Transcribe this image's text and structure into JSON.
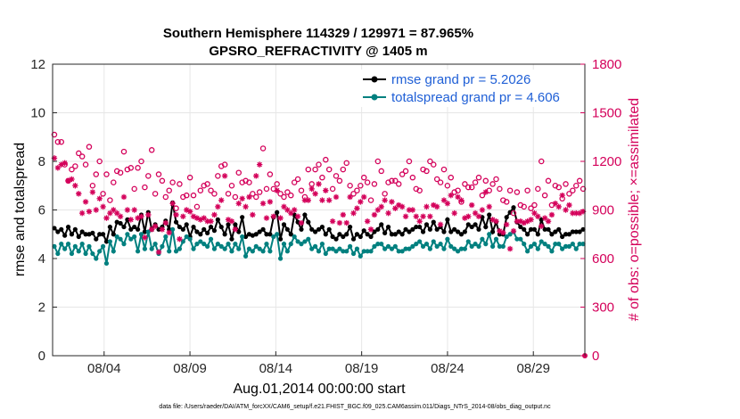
{
  "chart_data": {
    "type": "line",
    "title": "Southern Hemisphere 114329 / 129971 = 87.965%",
    "subtitle": "GPSRO_REFRACTIVITY @ 1405 m",
    "xlabel": "Aug.01,2014 00:00:00 start",
    "ylabel_left": "rmse and totalspread",
    "ylabel_right": "# of obs: o=possible; ×=assimilated",
    "x_range": [
      1,
      32
    ],
    "ylim_left": [
      0,
      12
    ],
    "ylim_right": [
      0,
      1800
    ],
    "x_tick_labels": [
      "08/04",
      "08/09",
      "08/14",
      "08/19",
      "08/24",
      "08/29"
    ],
    "x_tick_days": [
      4,
      9,
      14,
      19,
      24,
      29
    ],
    "y_ticks_left": [
      "0",
      "2",
      "4",
      "6",
      "8",
      "10",
      "12"
    ],
    "y_ticks_right": [
      "0",
      "300",
      "600",
      "900",
      "1200",
      "1500",
      "1800"
    ],
    "legend_position": "top-right",
    "series": [
      {
        "name": "rmse grand pr = 5.2026",
        "axis": "left",
        "color": "#000000",
        "marker": "filled-circle",
        "y": [
          5.25,
          5.1,
          5.2,
          4.95,
          5.3,
          5.0,
          5.2,
          4.9,
          5.1,
          5.0,
          5.0,
          5.05,
          4.8,
          5.0,
          5.0,
          4.7,
          5.3,
          5.0,
          5.5,
          5.45,
          5.3,
          5.6,
          5.2,
          5.3,
          5.2,
          5.8,
          5.1,
          5.9,
          5.2,
          5.4,
          5.2,
          5.3,
          5.55,
          5.2,
          6.3,
          5.5,
          5.3,
          5.2,
          5.4,
          4.9,
          5.3,
          5.1,
          5.0,
          5.2,
          5.05,
          5.3,
          5.15,
          5.6,
          5.3,
          5.0,
          5.4,
          4.8,
          5.4,
          5.1,
          5.7,
          4.9,
          5.0,
          4.95,
          5.0,
          5.1,
          5.2,
          5.0,
          5.0,
          5.7,
          5.9,
          4.8,
          5.4,
          5.2,
          5.0,
          5.8,
          5.5,
          5.2,
          5.8,
          5.5,
          5.2,
          5.1,
          5.2,
          5.3,
          5.0,
          5.2,
          4.9,
          4.8,
          5.0,
          4.9,
          5.0,
          5.3,
          4.8,
          5.0,
          4.9,
          5.15,
          5.0,
          4.9,
          5.1,
          5.2,
          5.4,
          5.05,
          5.3,
          5.0,
          5.0,
          5.1,
          5.0,
          5.2,
          5.1,
          5.2,
          5.3,
          5.3,
          5.1,
          5.4,
          5.2,
          5.5,
          5.2,
          5.3,
          5.1,
          5.6,
          5.1,
          5.2,
          5.1,
          5.0,
          5.1,
          5.4,
          5.3,
          5.4,
          5.2,
          5.7,
          5.3,
          5.8,
          5.1,
          5.5,
          5.0,
          5.0,
          5.7,
          5.9,
          6.1,
          5.5,
          5.3,
          5.2,
          5.0,
          5.2,
          5.2,
          5.0,
          5.6,
          5.2,
          5.2,
          5.0,
          5.1,
          5.2,
          4.9,
          5.0,
          5.0,
          5.1,
          5.1,
          5.1,
          5.2
        ]
      },
      {
        "name": "totalspread grand pr = 4.606",
        "axis": "left",
        "color": "#00807f",
        "marker": "filled-circle",
        "y": [
          4.5,
          4.2,
          4.6,
          4.4,
          4.6,
          4.2,
          4.5,
          4.3,
          4.6,
          4.2,
          4.5,
          4.2,
          4.0,
          4.3,
          4.5,
          3.8,
          4.7,
          4.3,
          4.9,
          4.8,
          4.6,
          5.0,
          4.8,
          4.9,
          4.3,
          5.0,
          4.4,
          5.1,
          4.4,
          4.6,
          4.2,
          4.5,
          4.9,
          4.3,
          5.2,
          4.3,
          4.4,
          4.7,
          4.9,
          4.8,
          4.4,
          4.6,
          4.7,
          4.6,
          4.5,
          4.8,
          4.4,
          4.6,
          4.5,
          4.4,
          4.6,
          4.3,
          4.6,
          4.4,
          4.9,
          4.1,
          4.4,
          4.3,
          4.5,
          4.4,
          4.3,
          4.6,
          4.3,
          4.9,
          5.0,
          4.0,
          4.6,
          4.3,
          4.6,
          4.9,
          4.7,
          4.6,
          4.7,
          4.8,
          4.4,
          4.5,
          4.3,
          4.6,
          4.2,
          4.4,
          4.4,
          4.3,
          4.4,
          4.3,
          4.3,
          4.5,
          4.2,
          4.4,
          4.1,
          4.3,
          4.3,
          4.3,
          4.5,
          4.6,
          4.6,
          4.4,
          4.5,
          4.4,
          4.5,
          4.3,
          4.3,
          4.4,
          4.4,
          4.5,
          4.6,
          4.7,
          4.5,
          4.6,
          4.4,
          4.7,
          4.5,
          4.6,
          4.4,
          4.8,
          4.5,
          4.4,
          4.3,
          4.4,
          4.4,
          4.7,
          4.5,
          4.6,
          4.5,
          4.8,
          4.6,
          5.0,
          4.5,
          4.8,
          4.5,
          4.5,
          4.9,
          5.0,
          5.1,
          4.8,
          4.8,
          4.6,
          4.3,
          4.5,
          4.6,
          4.4,
          4.7,
          4.6,
          4.5,
          4.3,
          4.6,
          4.6,
          4.4,
          4.5,
          4.5,
          4.6,
          4.4,
          4.6,
          4.6
        ]
      },
      {
        "name": "possible",
        "axis": "right",
        "color": "#d4005a",
        "marker": "open-circle",
        "y": [
          1365,
          1320,
          1320,
          1180,
          1080,
          1150,
          1170,
          1250,
          1230,
          1180,
          1290,
          1050,
          1120,
          1200,
          1000,
          1120,
          960,
          1070,
          1140,
          1130,
          1260,
          1150,
          1160,
          1030,
          1160,
          1200,
          1040,
          1110,
          1270,
          1000,
          1120,
          1080,
          980,
          1020,
          1070,
          910,
          1060,
          980,
          990,
          1100,
          990,
          920,
          1020,
          1050,
          1060,
          1020,
          1000,
          1110,
          1170,
          1180,
          1000,
          1050,
          980,
          1130,
          1070,
          1080,
          1070,
          1000,
          980,
          1010,
          1280,
          1030,
          1120,
          1030,
          1060,
          1000,
          980,
          1010,
          990,
          1070,
          1090,
          1020,
          980,
          1150,
          1060,
          1150,
          1180,
          1100,
          1210,
          1150,
          1030,
          1110,
          1080,
          1150,
          1190,
          1050,
          1000,
          1020,
          1050,
          1100,
          1070,
          960,
          1060,
          1200,
          1140,
          1000,
          1070,
          1080,
          1080,
          1060,
          1120,
          1140,
          1200,
          1100,
          1030,
          1020,
          1150,
          1140,
          1200,
          1180,
          1090,
          1070,
          1150,
          1050,
          1100,
          1010,
          1020,
          950,
          1060,
          1040,
          1040,
          1070,
          1100,
          990,
          1080,
          1020,
          1060,
          1090,
          1030,
          960,
          950,
          1020,
          880,
          1010,
          930,
          920,
          1020,
          910,
          930,
          1030,
          1200,
          990,
          1080,
          930,
          1050,
          1040,
          970,
          1060,
          1000,
          1020,
          1050,
          1080,
          1030
        ]
      },
      {
        "name": "assimilated",
        "axis": "right",
        "color": "#d4005a",
        "marker": "x",
        "y": [
          1220,
          1160,
          1180,
          1190,
          1080,
          1090,
          1050,
          1000,
          880,
          950,
          890,
          1010,
          900,
          970,
          920,
          850,
          880,
          900,
          880,
          860,
          980,
          900,
          840,
          900,
          850,
          860,
          730,
          870,
          780,
          800,
          640,
          780,
          820,
          760,
          940,
          870,
          720,
          860,
          900,
          890,
          860,
          850,
          840,
          850,
          830,
          830,
          870,
          920,
          960,
          1110,
          840,
          830,
          780,
          940,
          970,
          920,
          980,
          870,
          1110,
          1180,
          940,
          850,
          950,
          860,
          1020,
          850,
          920,
          900,
          880,
          900,
          860,
          820,
          960,
          960,
          1030,
          1000,
          1060,
          960,
          1020,
          960,
          830,
          980,
          820,
          870,
          820,
          980,
          880,
          910,
          950,
          980,
          830,
          780,
          870,
          900,
          920,
          960,
          880,
          950,
          910,
          930,
          920,
          860,
          900,
          900,
          860,
          830,
          860,
          920,
          860,
          930,
          920,
          810,
          960,
          940,
          990,
          880,
          980,
          960,
          850,
          860,
          930,
          880,
          860,
          900,
          1010,
          920,
          840,
          830,
          770,
          760,
          810,
          660,
          770,
          830,
          830,
          820,
          830,
          840,
          880,
          860,
          800,
          850,
          830,
          870,
          940,
          920,
          990,
          900,
          930,
          880,
          880,
          880,
          890
        ]
      }
    ]
  },
  "footnote": "data file: /Users/raeder/DAI/ATM_forcXX/CAM6_setup/f.e21.FHIST_BGC.f09_025.CAM6assim.011/Diags_NTrS_2014-08/obs_diag_output.nc"
}
